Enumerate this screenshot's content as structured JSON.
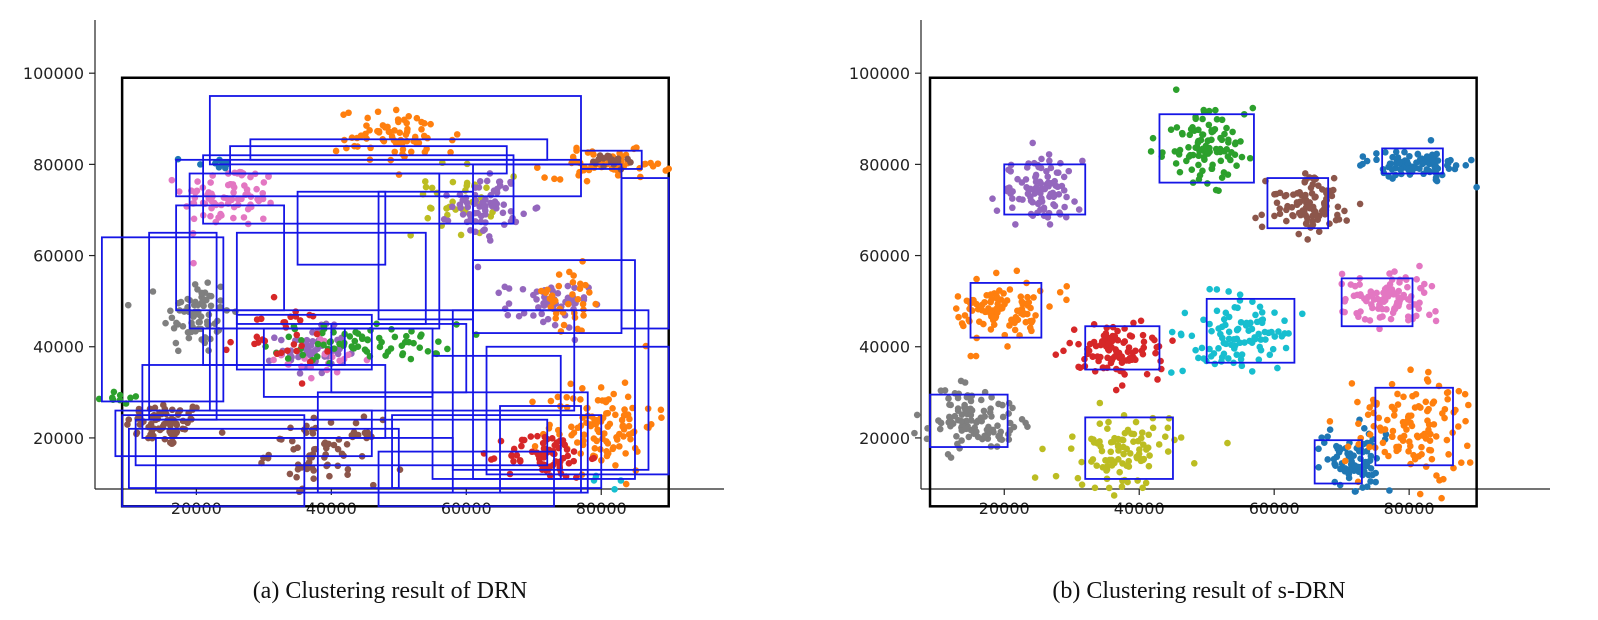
{
  "captions": {
    "a": "(a) Clustering result of DRN",
    "b": "(b) Clustering result of s-DRN"
  },
  "chart_data": [
    {
      "type": "scatter",
      "title": "",
      "xlabel": "",
      "ylabel": "",
      "xlim": [
        5000,
        90000
      ],
      "ylim": [
        5000,
        100000
      ],
      "xticks": [
        "20000",
        "40000",
        "60000",
        "80000"
      ],
      "yticks": [
        "20000",
        "40000",
        "60000",
        "80000",
        "100000"
      ],
      "grid": false,
      "frame": {
        "x": [
          9000,
          90000
        ],
        "y": [
          5000,
          99000
        ],
        "color": "#000000"
      },
      "clusters": [
        {
          "color": "#8c564b",
          "cx": 15500,
          "cy": 23000,
          "sx": 3000,
          "sy": 2500,
          "n": 70
        },
        {
          "color": "#7f7f7f",
          "cx": 20000,
          "cy": 47000,
          "sx": 2500,
          "sy": 4500,
          "n": 70
        },
        {
          "color": "#e377c2",
          "cx": 25000,
          "cy": 73000,
          "sx": 3500,
          "sy": 3500,
          "n": 80
        },
        {
          "color": "#9467bd",
          "cx": 37000,
          "cy": 39000,
          "sx": 2500,
          "sy": 2500,
          "n": 60
        },
        {
          "color": "#e377c2",
          "cx": 39000,
          "cy": 37000,
          "sx": 3000,
          "sy": 2500,
          "n": 20
        },
        {
          "color": "#2ca02c",
          "cx": 45000,
          "cy": 41000,
          "sx": 7000,
          "sy": 2000,
          "n": 70
        },
        {
          "color": "#d62728",
          "cx": 32000,
          "cy": 42000,
          "sx": 4000,
          "sy": 3500,
          "n": 30
        },
        {
          "color": "#8c564b",
          "cx": 39000,
          "cy": 17000,
          "sx": 4000,
          "sy": 3500,
          "n": 70
        },
        {
          "color": "#ff7f0e",
          "cx": 50000,
          "cy": 86000,
          "sx": 4500,
          "sy": 3000,
          "n": 70
        },
        {
          "color": "#bcbd22",
          "cx": 58000,
          "cy": 72000,
          "sx": 3000,
          "sy": 4000,
          "n": 35
        },
        {
          "color": "#9467bd",
          "cx": 63000,
          "cy": 71000,
          "sx": 2500,
          "sy": 3500,
          "n": 70
        },
        {
          "color": "#9467bd",
          "cx": 72000,
          "cy": 49000,
          "sx": 3000,
          "sy": 2500,
          "n": 50
        },
        {
          "color": "#ff7f0e",
          "cx": 75000,
          "cy": 50000,
          "sx": 3000,
          "sy": 4000,
          "n": 35
        },
        {
          "color": "#ff7f0e",
          "cx": 81000,
          "cy": 80000,
          "sx": 4500,
          "sy": 1500,
          "n": 60
        },
        {
          "color": "#8c564b",
          "cx": 81000,
          "cy": 80500,
          "sx": 1500,
          "sy": 1000,
          "n": 20
        },
        {
          "color": "#ff7f0e",
          "cx": 80000,
          "cy": 23000,
          "sx": 4000,
          "sy": 5000,
          "n": 110
        },
        {
          "color": "#d62728",
          "cx": 72000,
          "cy": 16000,
          "sx": 3000,
          "sy": 2500,
          "n": 70
        },
        {
          "color": "#1f77b4",
          "cx": 22000,
          "cy": 80000,
          "sx": 2000,
          "sy": 1000,
          "n": 10
        },
        {
          "color": "#2ca02c",
          "cx": 9000,
          "cy": 29000,
          "sx": 1500,
          "sy": 800,
          "n": 10
        },
        {
          "color": "#17becf",
          "cx": 81000,
          "cy": 10000,
          "sx": 1500,
          "sy": 800,
          "n": 4
        }
      ],
      "rectangles": [
        {
          "x0": 22000,
          "x1": 77000,
          "y0": 80000,
          "y1": 95000
        },
        {
          "x0": 28000,
          "x1": 72000,
          "y0": 81000,
          "y1": 85500
        },
        {
          "x0": 25000,
          "x1": 66000,
          "y0": 78000,
          "y1": 84000
        },
        {
          "x0": 21000,
          "x1": 67000,
          "y0": 67000,
          "y1": 82000
        },
        {
          "x0": 17000,
          "x1": 77000,
          "y0": 73000,
          "y1": 81000
        },
        {
          "x0": 19000,
          "x1": 56000,
          "y0": 44000,
          "y1": 78000
        },
        {
          "x0": 17000,
          "x1": 33000,
          "y0": 48000,
          "y1": 71000
        },
        {
          "x0": 26000,
          "x1": 54000,
          "y0": 45000,
          "y1": 65000
        },
        {
          "x0": 35000,
          "x1": 48000,
          "y0": 58000,
          "y1": 74000
        },
        {
          "x0": 47000,
          "x1": 61000,
          "y0": 46000,
          "y1": 74000
        },
        {
          "x0": 61000,
          "x1": 83000,
          "y0": 43000,
          "y1": 80000
        },
        {
          "x0": 77000,
          "x1": 86000,
          "y0": 79000,
          "y1": 83000
        },
        {
          "x0": 83000,
          "x1": 90000,
          "y0": 44000,
          "y1": 77000
        },
        {
          "x0": 61000,
          "x1": 85000,
          "y0": 11000,
          "y1": 59000
        },
        {
          "x0": 6000,
          "x1": 24000,
          "y0": 28000,
          "y1": 64000
        },
        {
          "x0": 13000,
          "x1": 23000,
          "y0": 24000,
          "y1": 65000
        },
        {
          "x0": 22000,
          "x1": 76000,
          "y0": 26000,
          "y1": 48000
        },
        {
          "x0": 21000,
          "x1": 42000,
          "y0": 36000,
          "y1": 44000
        },
        {
          "x0": 26000,
          "x1": 46000,
          "y0": 35000,
          "y1": 47000
        },
        {
          "x0": 30000,
          "x1": 55000,
          "y0": 29000,
          "y1": 44000
        },
        {
          "x0": 40000,
          "x1": 60000,
          "y0": 30000,
          "y1": 45000
        },
        {
          "x0": 12000,
          "x1": 48000,
          "y0": 20000,
          "y1": 36000
        },
        {
          "x0": 8000,
          "x1": 46000,
          "y0": 16000,
          "y1": 26000
        },
        {
          "x0": 10000,
          "x1": 50000,
          "y0": 9000,
          "y1": 22000
        },
        {
          "x0": 14000,
          "x1": 58000,
          "y0": 8000,
          "y1": 20000
        },
        {
          "x0": 11000,
          "x1": 72000,
          "y0": 14000,
          "y1": 24000
        },
        {
          "x0": 38000,
          "x1": 78000,
          "y0": 8000,
          "y1": 30000
        },
        {
          "x0": 47000,
          "x1": 73000,
          "y0": 5000,
          "y1": 17000
        },
        {
          "x0": 49000,
          "x1": 80000,
          "y0": 9000,
          "y1": 25000
        },
        {
          "x0": 55000,
          "x1": 74000,
          "y0": 11000,
          "y1": 38000
        },
        {
          "x0": 63000,
          "x1": 90000,
          "y0": 12000,
          "y1": 40000
        },
        {
          "x0": 58000,
          "x1": 87000,
          "y0": 13000,
          "y1": 48000
        },
        {
          "x0": 9000,
          "x1": 36000,
          "y0": 5000,
          "y1": 25000
        },
        {
          "x0": 65000,
          "x1": 77000,
          "y0": 8000,
          "y1": 27000
        }
      ]
    },
    {
      "type": "scatter",
      "title": "",
      "xlabel": "",
      "ylabel": "",
      "xlim": [
        5000,
        90000
      ],
      "ylim": [
        5000,
        100000
      ],
      "xticks": [
        "20000",
        "40000",
        "60000",
        "80000"
      ],
      "yticks": [
        "20000",
        "40000",
        "60000",
        "80000",
        "100000"
      ],
      "grid": false,
      "frame": {
        "x": [
          9000,
          90000
        ],
        "y": [
          5000,
          99000
        ],
        "color": "#000000"
      },
      "clusters": [
        {
          "color": "#9467bd",
          "cx": 25000,
          "cy": 74000,
          "sx": 3000,
          "sy": 3500,
          "n": 100
        },
        {
          "color": "#2ca02c",
          "cx": 50000,
          "cy": 84000,
          "sx": 3500,
          "sy": 4000,
          "n": 100
        },
        {
          "color": "#8c564b",
          "cx": 65000,
          "cy": 71000,
          "sx": 3000,
          "sy": 3000,
          "n": 100
        },
        {
          "color": "#1f77b4",
          "cx": 81000,
          "cy": 80000,
          "sx": 3500,
          "sy": 1500,
          "n": 90
        },
        {
          "color": "#ff7f0e",
          "cx": 20000,
          "cy": 48000,
          "sx": 3500,
          "sy": 3500,
          "n": 100
        },
        {
          "color": "#d62728",
          "cx": 37000,
          "cy": 39000,
          "sx": 3500,
          "sy": 3000,
          "n": 100
        },
        {
          "color": "#17becf",
          "cx": 55000,
          "cy": 43000,
          "sx": 4000,
          "sy": 4000,
          "n": 100
        },
        {
          "color": "#e377c2",
          "cx": 77000,
          "cy": 50000,
          "sx": 3500,
          "sy": 3000,
          "n": 100
        },
        {
          "color": "#7f7f7f",
          "cx": 15000,
          "cy": 24000,
          "sx": 3500,
          "sy": 3500,
          "n": 110
        },
        {
          "color": "#bcbd22",
          "cx": 38000,
          "cy": 17000,
          "sx": 4000,
          "sy": 4000,
          "n": 100
        },
        {
          "color": "#1f77b4",
          "cx": 71500,
          "cy": 15000,
          "sx": 2500,
          "sy": 3500,
          "n": 80
        },
        {
          "color": "#ff7f0e",
          "cx": 80000,
          "cy": 23000,
          "sx": 4000,
          "sy": 5000,
          "n": 120
        }
      ],
      "rectangles": [
        {
          "x0": 20000,
          "x1": 32000,
          "y0": 69000,
          "y1": 80000
        },
        {
          "x0": 43000,
          "x1": 57000,
          "y0": 76000,
          "y1": 91000
        },
        {
          "x0": 59000,
          "x1": 68000,
          "y0": 66000,
          "y1": 77000
        },
        {
          "x0": 76000,
          "x1": 85000,
          "y0": 78000,
          "y1": 83500
        },
        {
          "x0": 15000,
          "x1": 25500,
          "y0": 42000,
          "y1": 54000
        },
        {
          "x0": 32000,
          "x1": 43000,
          "y0": 35000,
          "y1": 44500
        },
        {
          "x0": 50000,
          "x1": 63000,
          "y0": 36500,
          "y1": 50500
        },
        {
          "x0": 70000,
          "x1": 80500,
          "y0": 44500,
          "y1": 55000
        },
        {
          "x0": 9000,
          "x1": 20500,
          "y0": 18000,
          "y1": 29500
        },
        {
          "x0": 32000,
          "x1": 45000,
          "y0": 11000,
          "y1": 24500
        },
        {
          "x0": 66000,
          "x1": 73000,
          "y0": 10000,
          "y1": 19500
        },
        {
          "x0": 75000,
          "x1": 86500,
          "y0": 14000,
          "y1": 31000
        }
      ]
    }
  ]
}
